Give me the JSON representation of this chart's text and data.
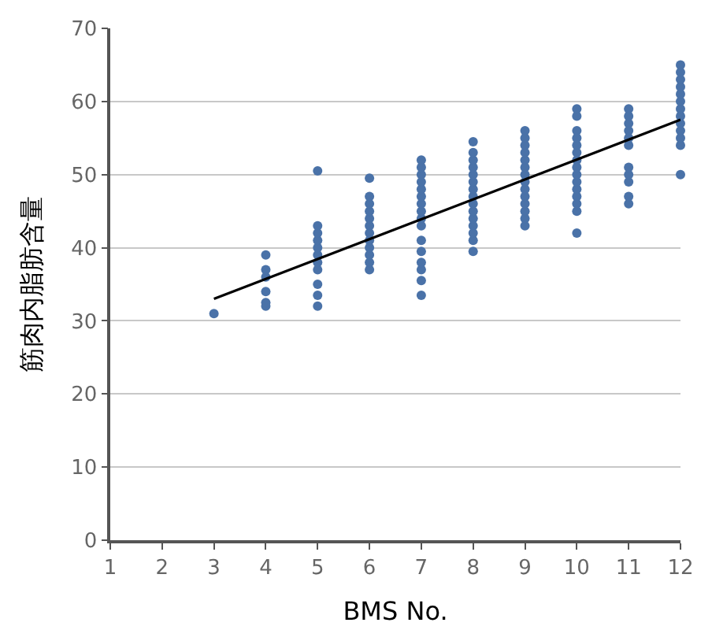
{
  "chart_data": {
    "type": "scatter",
    "xlabel": "BMS No.",
    "ylabel": "筋肉内脂肪含量",
    "xlim": [
      1,
      12
    ],
    "xticks": [
      1,
      2,
      3,
      4,
      5,
      6,
      7,
      8,
      9,
      10,
      11,
      12
    ],
    "ylim": [
      0,
      70
    ],
    "yticks": [
      0,
      10,
      20,
      30,
      40,
      50,
      60,
      70
    ],
    "grid": "y",
    "marker": "circle",
    "series": [
      {
        "color": "#4a72a8",
        "x": [
          3,
          4,
          4,
          4,
          4,
          4,
          4,
          5,
          5,
          5,
          5,
          5,
          5,
          5,
          5,
          5,
          5,
          5,
          6,
          6,
          6,
          6,
          6,
          6,
          6,
          6,
          6,
          6,
          6,
          6,
          7,
          7,
          7,
          7,
          7,
          7,
          7,
          7,
          7,
          7,
          7,
          7,
          7,
          7,
          7,
          7,
          8,
          8,
          8,
          8,
          8,
          8,
          8,
          8,
          8,
          8,
          8,
          8,
          8,
          8,
          8,
          9,
          9,
          9,
          9,
          9,
          9,
          9,
          9,
          9,
          9,
          9,
          9,
          9,
          9,
          10,
          10,
          10,
          10,
          10,
          10,
          10,
          10,
          10,
          10,
          10,
          10,
          10,
          10,
          10,
          11,
          11,
          11,
          11,
          11,
          11,
          11,
          11,
          11,
          11,
          11,
          12,
          12,
          12,
          12,
          12,
          12,
          12,
          12,
          12,
          12,
          12,
          12,
          12
        ],
        "values": [
          31,
          32,
          32.5,
          34,
          36,
          37,
          39,
          32,
          33.5,
          35,
          37,
          38,
          39,
          40,
          41,
          42,
          43,
          50.5,
          37,
          38,
          39,
          40,
          41,
          42,
          43,
          44,
          45,
          46,
          47,
          49.5,
          33.5,
          35.5,
          37,
          38,
          39.5,
          41,
          43,
          44,
          45,
          46,
          47,
          48,
          49,
          50,
          51,
          52,
          39.5,
          41,
          42,
          43,
          44,
          45,
          46,
          47,
          48,
          49,
          50,
          51,
          52,
          53,
          54.5,
          43,
          44,
          45,
          46,
          47,
          48,
          49,
          50,
          51,
          52,
          53,
          54,
          55,
          56,
          42,
          45,
          46,
          47,
          48,
          49,
          50,
          51,
          52,
          53,
          54,
          55,
          56,
          58,
          59,
          46,
          47,
          49,
          50,
          51,
          54,
          55,
          56,
          57,
          58,
          59,
          50,
          54,
          55,
          56,
          57,
          58,
          59,
          60,
          61,
          62,
          63,
          64,
          65
        ]
      },
      {
        "type": "line",
        "color": "#000000",
        "marker": "none",
        "line_style": "solid",
        "x": [
          3,
          12
        ],
        "values": [
          33,
          57.5
        ]
      }
    ]
  }
}
